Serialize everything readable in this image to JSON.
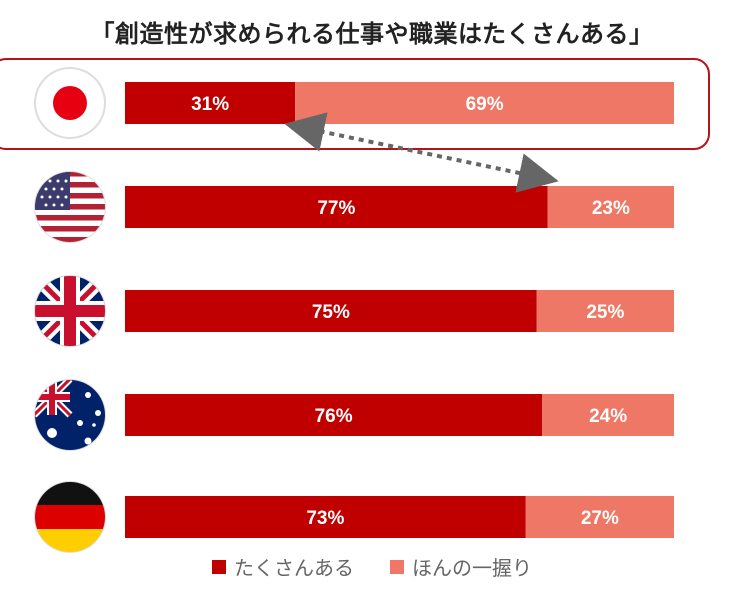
{
  "chart_data": {
    "type": "bar",
    "stacked": true,
    "orientation": "horizontal",
    "title": "「創造性が求められる仕事や職業はたくさんある」",
    "categories": [
      "Japan",
      "United States",
      "United Kingdom",
      "Australia",
      "Germany"
    ],
    "series": [
      {
        "name": "たくさんある",
        "color": "#c00000",
        "values": [
          31,
          77,
          75,
          76,
          73
        ]
      },
      {
        "name": "ほんの一握り",
        "color": "#ee7766",
        "values": [
          69,
          23,
          25,
          24,
          27
        ]
      }
    ],
    "value_suffix": "%",
    "xlim": [
      0,
      100
    ],
    "legend": "bottom",
    "highlight_category": "Japan",
    "annotation": "dotted double-headed arrow comparing Japan (31%) with United States (77%)"
  },
  "flags": [
    {
      "country": "Japan",
      "icon": "japan-flag-icon"
    },
    {
      "country": "United States",
      "icon": "us-flag-icon"
    },
    {
      "country": "United Kingdom",
      "icon": "uk-flag-icon"
    },
    {
      "country": "Australia",
      "icon": "australia-flag-icon"
    },
    {
      "country": "Germany",
      "icon": "germany-flag-icon"
    }
  ]
}
